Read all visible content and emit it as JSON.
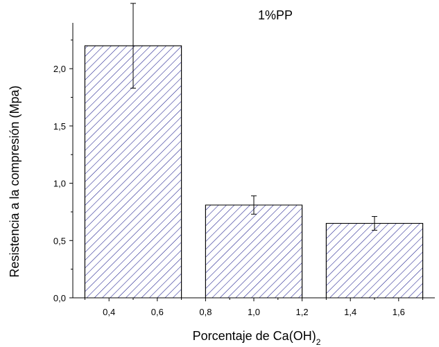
{
  "chart_data": {
    "type": "bar",
    "title": "1%PP",
    "xlabel": "Porcentaje de Ca(OH)",
    "xlabel_subscript": "2",
    "ylabel": "Resistencia a la compresión (Mpa)",
    "x": [
      0.5,
      1.0,
      1.5
    ],
    "bar_width": 0.4,
    "values": [
      2.2,
      0.81,
      0.65
    ],
    "errors": [
      0.37,
      0.08,
      0.06
    ],
    "xlim": [
      0.25,
      1.75
    ],
    "ylim": [
      0,
      2.4
    ],
    "xticks": [
      0.4,
      0.6,
      0.8,
      1.0,
      1.2,
      1.4,
      1.6
    ],
    "xtick_labels": [
      "0,4",
      "0,6",
      "0,8",
      "1,0",
      "1,2",
      "1,4",
      "1,6"
    ],
    "yticks": [
      0,
      0.5,
      1.0,
      1.5,
      2.0
    ],
    "ytick_labels": [
      "0,0",
      "0,5",
      "1,0",
      "1,5",
      "2,0"
    ],
    "fill_pattern": "diagonal-hatch",
    "hatch_color": "#1a1a8c",
    "grid": false,
    "legend": false
  }
}
